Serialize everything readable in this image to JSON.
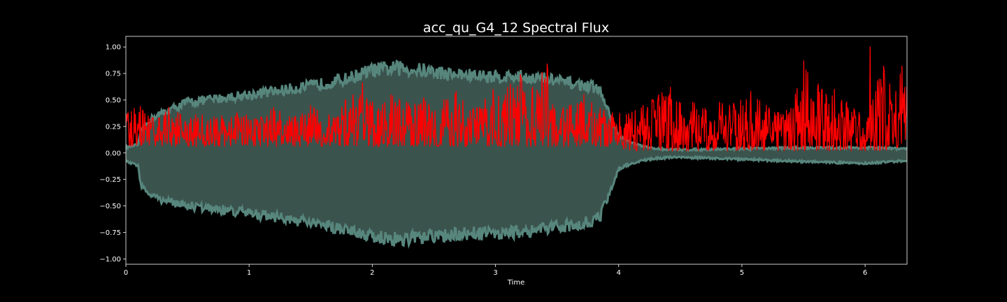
{
  "chart_data": {
    "type": "line",
    "title": "acc_qu_G4_12 Spectral Flux",
    "xlabel": "Time",
    "ylabel": "",
    "xlim": [
      0,
      6.34
    ],
    "ylim": [
      -1.05,
      1.1
    ],
    "x_ticks": [
      0,
      1,
      2,
      3,
      4,
      5,
      6
    ],
    "x_tick_labels": [
      "0",
      "1",
      "2",
      "3",
      "4",
      "5",
      "6"
    ],
    "y_ticks": [
      1.0,
      0.75,
      0.5,
      0.25,
      0.0,
      -0.25,
      -0.5,
      -0.75,
      -1.0
    ],
    "y_tick_labels": [
      "1.00",
      "0.75",
      "0.50",
      "0.25",
      "0.00",
      "−0.25",
      "−0.50",
      "−0.75",
      "−1.00"
    ],
    "grid": false,
    "background": "#000000",
    "series": [
      {
        "kind": "waveform-envelope",
        "color": "#57867d",
        "fill_color": "#3b534d",
        "envelope_x": [
          0,
          0.1,
          0.12,
          0.2,
          0.3,
          0.5,
          0.8,
          1.0,
          1.2,
          1.5,
          1.8,
          2.0,
          2.2,
          2.4,
          2.6,
          2.8,
          3.0,
          3.2,
          3.4,
          3.6,
          3.8,
          3.85,
          3.95,
          4.0,
          4.1,
          4.2,
          4.3,
          4.5,
          5.0,
          5.5,
          6.0,
          6.34
        ],
        "envelope_upper": [
          0.05,
          0.08,
          0.2,
          0.32,
          0.38,
          0.48,
          0.52,
          0.55,
          0.58,
          0.63,
          0.7,
          0.78,
          0.8,
          0.78,
          0.75,
          0.73,
          0.72,
          0.72,
          0.7,
          0.66,
          0.62,
          0.58,
          0.3,
          0.16,
          0.1,
          0.06,
          0.04,
          0.03,
          0.04,
          0.05,
          0.05,
          0.04
        ],
        "envelope_lower": [
          -0.08,
          -0.12,
          -0.3,
          -0.4,
          -0.45,
          -0.5,
          -0.54,
          -0.57,
          -0.6,
          -0.66,
          -0.72,
          -0.78,
          -0.82,
          -0.8,
          -0.78,
          -0.76,
          -0.76,
          -0.74,
          -0.72,
          -0.68,
          -0.64,
          -0.6,
          -0.3,
          -0.15,
          -0.1,
          -0.07,
          -0.05,
          -0.04,
          -0.06,
          -0.08,
          -0.1,
          -0.07
        ]
      },
      {
        "kind": "spectral-flux",
        "color": "#ff0000",
        "peaks": [
          [
            0.02,
            0.38
          ],
          [
            0.07,
            0.42
          ],
          [
            0.12,
            0.44
          ],
          [
            0.22,
            0.33
          ],
          [
            0.35,
            0.43
          ],
          [
            0.42,
            0.38
          ],
          [
            0.62,
            0.36
          ],
          [
            0.78,
            0.35
          ],
          [
            0.9,
            0.38
          ],
          [
            1.1,
            0.34
          ],
          [
            1.2,
            0.43
          ],
          [
            1.35,
            0.33
          ],
          [
            1.5,
            0.45
          ],
          [
            1.65,
            0.36
          ],
          [
            1.92,
            0.66
          ],
          [
            2.05,
            0.42
          ],
          [
            2.15,
            0.55
          ],
          [
            2.28,
            0.48
          ],
          [
            2.42,
            0.52
          ],
          [
            2.58,
            0.5
          ],
          [
            2.68,
            0.58
          ],
          [
            2.82,
            0.42
          ],
          [
            2.98,
            0.6
          ],
          [
            3.12,
            0.65
          ],
          [
            3.2,
            0.74
          ],
          [
            3.3,
            0.62
          ],
          [
            3.42,
            0.84
          ],
          [
            3.48,
            0.42
          ],
          [
            3.6,
            0.45
          ],
          [
            3.72,
            0.55
          ],
          [
            3.85,
            0.42
          ],
          [
            3.95,
            0.38
          ],
          [
            4.08,
            0.37
          ],
          [
            4.2,
            0.45
          ],
          [
            4.35,
            0.57
          ],
          [
            4.42,
            0.62
          ],
          [
            4.5,
            0.47
          ],
          [
            4.6,
            0.48
          ],
          [
            4.7,
            0.42
          ],
          [
            4.82,
            0.48
          ],
          [
            4.9,
            0.45
          ],
          [
            5.07,
            0.58
          ],
          [
            5.2,
            0.45
          ],
          [
            5.3,
            0.38
          ],
          [
            5.4,
            0.42
          ],
          [
            5.5,
            0.87
          ],
          [
            5.62,
            0.65
          ],
          [
            5.75,
            0.6
          ],
          [
            5.85,
            0.48
          ],
          [
            5.95,
            0.38
          ],
          [
            6.05,
            0.45
          ],
          [
            6.1,
            0.68
          ],
          [
            6.15,
            0.82
          ],
          [
            6.2,
            0.65
          ],
          [
            6.25,
            0.58
          ],
          [
            6.3,
            0.82
          ],
          [
            6.34,
            0.63
          ]
        ],
        "global_peak": [
          6.04,
          1.0
        ]
      }
    ]
  }
}
